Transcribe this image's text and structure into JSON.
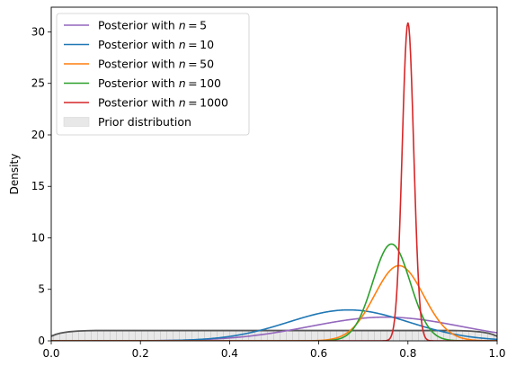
{
  "chart_data": {
    "type": "line",
    "xlabel": "",
    "ylabel": "Density",
    "xlim": [
      0,
      1
    ],
    "ylim": [
      0,
      32.4
    ],
    "xticks": [
      "0.0",
      "0.2",
      "0.4",
      "0.6",
      "0.8",
      "1.0"
    ],
    "yticks": [
      "0",
      "5",
      "10",
      "15",
      "20",
      "25",
      "30"
    ],
    "xtick_values": [
      0,
      0.2,
      0.4,
      0.6,
      0.8,
      1.0
    ],
    "ytick_values": [
      0,
      5,
      10,
      15,
      20,
      25,
      30
    ],
    "grid": false,
    "legend_position": "top-left",
    "prior": {
      "name": "Prior distribution",
      "x": [
        0,
        0.01,
        0.02,
        0.03,
        0.04,
        0.05,
        0.06,
        0.08,
        0.1,
        0.5,
        0.9,
        0.92,
        0.94,
        0.95,
        0.96,
        0.97,
        0.98,
        0.99,
        1.0
      ],
      "y": [
        0.45,
        0.62,
        0.74,
        0.82,
        0.88,
        0.92,
        0.95,
        0.98,
        1.0,
        1.0,
        1.0,
        0.98,
        0.95,
        0.92,
        0.88,
        0.82,
        0.74,
        0.62,
        0.45
      ],
      "fill_color": "#e8e8e8",
      "line_color": "#555555"
    },
    "series": [
      {
        "name_prefix": "Posterior with ",
        "n": "5",
        "color": "#9467bd",
        "mode": 0.75,
        "peak": 2.3,
        "sd": 0.17
      },
      {
        "name_prefix": "Posterior with ",
        "n": "10",
        "color": "#1f77b4",
        "mode": 0.667,
        "peak": 3.0,
        "sd": 0.135
      },
      {
        "name_prefix": "Posterior with ",
        "n": "50",
        "color": "#ff7f0e",
        "mode": 0.78,
        "peak": 7.3,
        "sd": 0.055
      },
      {
        "name_prefix": "Posterior with ",
        "n": "100",
        "color": "#2ca02c",
        "mode": 0.763,
        "peak": 9.4,
        "sd": 0.042
      },
      {
        "name_prefix": "Posterior with ",
        "n": "1000",
        "color": "#d62728",
        "mode": 0.8,
        "peak": 30.9,
        "sd": 0.0129
      }
    ]
  }
}
